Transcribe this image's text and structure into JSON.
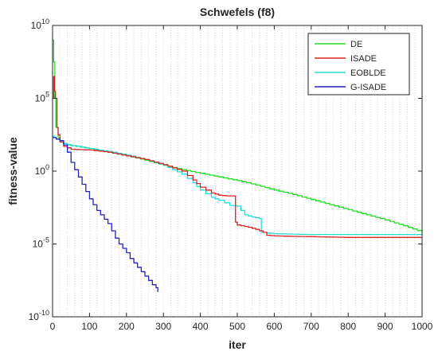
{
  "chart_data": {
    "type": "line",
    "title": "Schwefels (f8)",
    "xlabel": "iter",
    "ylabel": "fitness-value",
    "xlim": [
      0,
      1000
    ],
    "ylim_log10": [
      -10,
      10
    ],
    "yscale": "log",
    "grid": "dotted vertical minor lines",
    "legend_position": "top-right",
    "x_ticks": [
      0,
      100,
      200,
      300,
      400,
      500,
      600,
      700,
      800,
      900,
      1000
    ],
    "y_ticks": [
      {
        "base": "10",
        "exp": "10",
        "log": 10
      },
      {
        "base": "10",
        "exp": "5",
        "log": 5
      },
      {
        "base": "10",
        "exp": "0",
        "log": 0
      },
      {
        "base": "10",
        "exp": "-5",
        "log": -5
      },
      {
        "base": "10",
        "exp": "-10",
        "log": -10
      }
    ],
    "series": [
      {
        "name": "DE",
        "color": "#22dd22",
        "x": [
          0,
          3,
          6,
          9,
          15,
          20,
          30,
          50,
          100,
          150,
          200,
          250,
          300,
          350,
          400,
          450,
          500,
          550,
          600,
          650,
          700,
          750,
          800,
          850,
          900,
          950,
          1000
        ],
        "y_log10": [
          9.0,
          7.5,
          5.0,
          3.0,
          2.3,
          2.1,
          1.9,
          1.75,
          1.55,
          1.3,
          1.05,
          0.75,
          0.4,
          0.1,
          -0.15,
          -0.4,
          -0.65,
          -0.95,
          -1.3,
          -1.6,
          -1.95,
          -2.3,
          -2.65,
          -3.0,
          -3.35,
          -3.75,
          -4.2
        ]
      },
      {
        "name": "ISADE",
        "color": "#dd2222",
        "x": [
          0,
          3,
          5,
          8,
          12,
          15,
          20,
          30,
          50,
          100,
          150,
          200,
          250,
          300,
          350,
          380,
          400,
          430,
          450,
          470,
          490,
          495,
          500,
          510,
          530,
          550,
          570,
          580,
          600,
          700,
          800,
          900,
          1000
        ],
        "y_log10": [
          5.0,
          6.5,
          5.5,
          5.0,
          3.0,
          2.5,
          2.0,
          1.7,
          1.5,
          1.45,
          1.3,
          1.05,
          0.8,
          0.45,
          0.0,
          -0.6,
          -1.1,
          -1.5,
          -1.65,
          -1.7,
          -1.7,
          -3.5,
          -3.7,
          -3.75,
          -3.85,
          -4.0,
          -4.2,
          -4.4,
          -4.45,
          -4.5,
          -4.55,
          -4.55,
          -4.55
        ]
      },
      {
        "name": "EOBLDE",
        "color": "#22dddd",
        "x": [
          0,
          5,
          10,
          20,
          40,
          80,
          100,
          150,
          200,
          250,
          300,
          350,
          380,
          400,
          430,
          450,
          480,
          500,
          520,
          540,
          550,
          560,
          565,
          580,
          600,
          700,
          800,
          900,
          1000
        ],
        "y_log10": [
          2.4,
          2.3,
          2.2,
          2.0,
          1.8,
          1.65,
          1.55,
          1.35,
          1.1,
          0.8,
          0.4,
          -0.2,
          -0.8,
          -1.3,
          -1.8,
          -2.0,
          -2.35,
          -2.4,
          -3.0,
          -3.15,
          -3.2,
          -3.25,
          -4.2,
          -4.25,
          -4.3,
          -4.35,
          -4.35,
          -4.35,
          -4.35
        ]
      },
      {
        "name": "G-ISADE",
        "color": "#2222bb",
        "x": [
          0,
          10,
          20,
          30,
          40,
          50,
          60,
          70,
          80,
          90,
          100,
          110,
          120,
          130,
          140,
          150,
          160,
          170,
          180,
          190,
          200,
          210,
          220,
          230,
          240,
          250,
          260,
          270,
          280,
          285
        ],
        "y_log10": [
          2.3,
          2.2,
          2.1,
          1.8,
          1.3,
          0.6,
          0.1,
          -0.4,
          -0.9,
          -1.4,
          -1.9,
          -2.3,
          -2.7,
          -3.0,
          -3.3,
          -3.6,
          -4.1,
          -4.6,
          -5.0,
          -5.3,
          -5.6,
          -6.0,
          -6.3,
          -6.6,
          -6.9,
          -7.2,
          -7.5,
          -7.8,
          -8.0,
          -8.3
        ]
      }
    ]
  }
}
